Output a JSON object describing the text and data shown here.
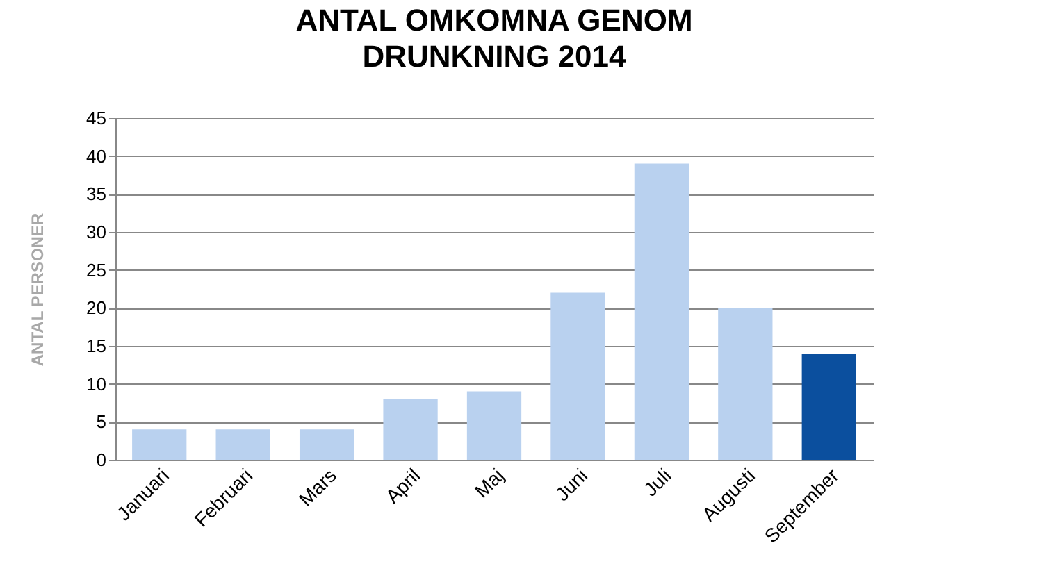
{
  "chart_data": {
    "type": "bar",
    "title": "ANTAL  OMKOMNA  GENOM\nDRUNKNING  2014",
    "ylabel": "ANTAL  PERSONER",
    "categories": [
      "Januari",
      "Februari",
      "Mars",
      "April",
      "Maj",
      "Juni",
      "Juli",
      "Augusti",
      "September"
    ],
    "values": [
      4,
      4,
      4,
      8,
      9,
      22,
      39,
      20,
      14
    ],
    "colors": [
      "#b9d1ef",
      "#b9d1ef",
      "#b9d1ef",
      "#b9d1ef",
      "#b9d1ef",
      "#b9d1ef",
      "#b9d1ef",
      "#b9d1ef",
      "#0b4f9e"
    ],
    "ylim": [
      0,
      45
    ],
    "yticks": [
      0,
      5,
      10,
      15,
      20,
      25,
      30,
      35,
      40,
      45
    ],
    "grid": "y"
  }
}
